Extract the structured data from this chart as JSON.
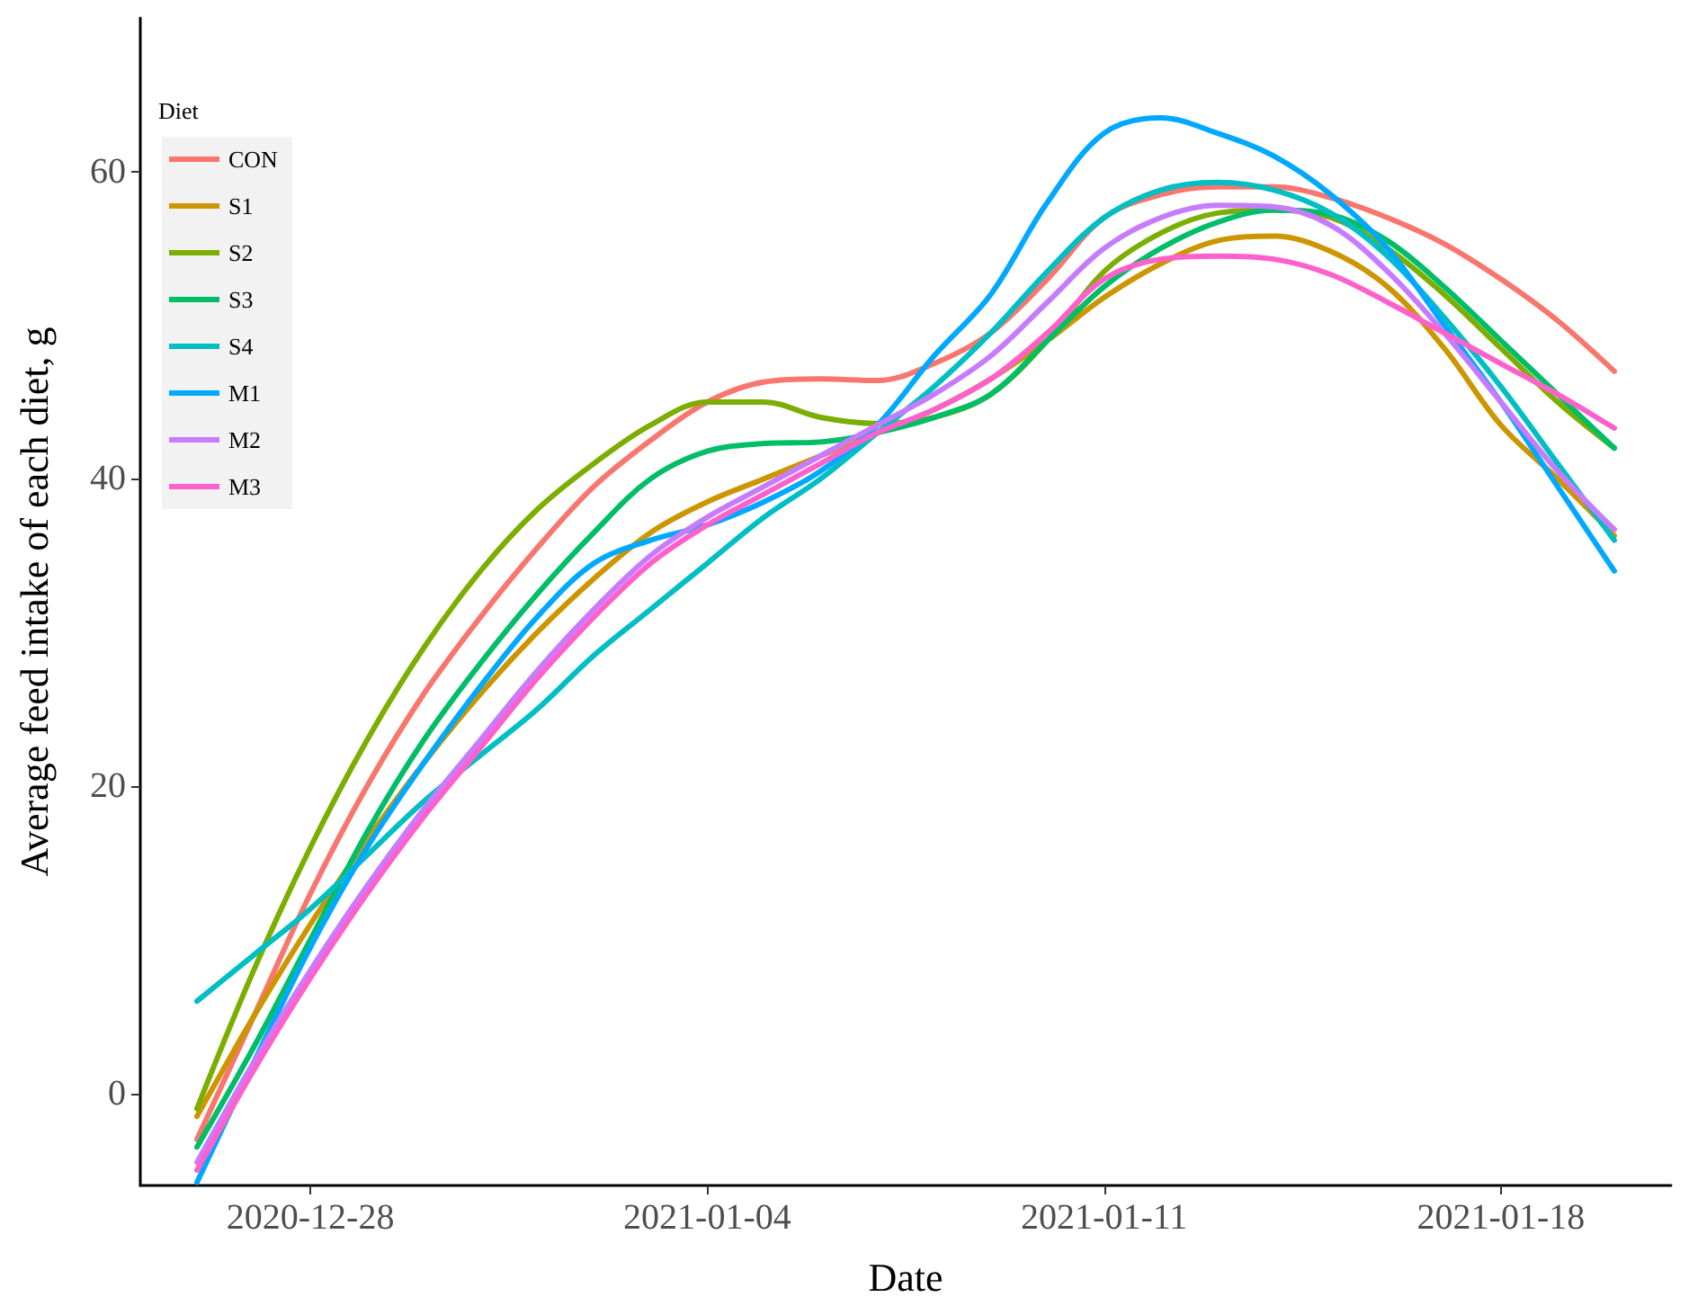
{
  "chart_data": {
    "type": "line",
    "xlabel": "Date",
    "ylabel": "Average feed intake of each diet, g",
    "legend_title": "Diet",
    "legend": "top left",
    "grid": false,
    "x": [
      "2020-12-26",
      "2020-12-27",
      "2020-12-28",
      "2020-12-29",
      "2020-12-30",
      "2020-12-31",
      "2021-01-01",
      "2021-01-02",
      "2021-01-03",
      "2021-01-04",
      "2021-01-05",
      "2021-01-06",
      "2021-01-07",
      "2021-01-08",
      "2021-01-09",
      "2021-01-10",
      "2021-01-11",
      "2021-01-12",
      "2021-01-13",
      "2021-01-14",
      "2021-01-15",
      "2021-01-16",
      "2021-01-17",
      "2021-01-18",
      "2021-01-19",
      "2021-01-20"
    ],
    "xlim": [
      "2020-12-25",
      "2021-01-21"
    ],
    "xticks": [
      "2020-12-28",
      "2021-01-04",
      "2021-01-11",
      "2021-01-18"
    ],
    "ylim": [
      -6,
      70
    ],
    "yticks": [
      0,
      20,
      40,
      60
    ],
    "series": [
      {
        "name": "CON",
        "color": "#f8766d",
        "values": [
          -3,
          5,
          13,
          20,
          26,
          31,
          35.5,
          39.5,
          42.5,
          45,
          46.3,
          46.5,
          46.4,
          47.5,
          49.5,
          53,
          57,
          58.5,
          59,
          59,
          58.3,
          57,
          55.3,
          53,
          50.3,
          47
        ]
      },
      {
        "name": "S1",
        "color": "#cd9600",
        "values": [
          -1.5,
          5,
          11,
          16.5,
          21.5,
          26,
          30,
          33.5,
          36.5,
          38.5,
          40,
          41.5,
          43,
          44.5,
          46.5,
          49,
          51.8,
          54,
          55.5,
          55.8,
          54.8,
          52.5,
          48.5,
          43.5,
          40,
          36.3
        ]
      },
      {
        "name": "S2",
        "color": "#7cae00",
        "values": [
          -1,
          8,
          16,
          23,
          29,
          34,
          38,
          41,
          43.5,
          45,
          45,
          44,
          43.6,
          44,
          45.5,
          49,
          53.5,
          56,
          57.3,
          57.5,
          57,
          55,
          52,
          48.5,
          45,
          42
        ]
      },
      {
        "name": "S3",
        "color": "#00be67",
        "values": [
          -3.5,
          3,
          10,
          17,
          23,
          28,
          32.5,
          36.5,
          40,
          41.8,
          42.3,
          42.4,
          43,
          44,
          45.5,
          49,
          52.5,
          55,
          56.7,
          57.5,
          57.2,
          55.5,
          52.5,
          49,
          45.5,
          42
        ]
      },
      {
        "name": "S4",
        "color": "#00bfc4",
        "values": [
          6,
          9,
          12,
          15.5,
          19,
          22,
          25,
          28.5,
          31.5,
          34.5,
          37.5,
          40,
          43,
          46,
          49.5,
          53.5,
          57,
          58.8,
          59.3,
          58.8,
          57.3,
          54.5,
          50.5,
          46,
          41,
          36
        ]
      },
      {
        "name": "M1",
        "color": "#00a9ff",
        "values": [
          -5.8,
          2,
          9.5,
          16,
          21.5,
          26.5,
          31,
          34.5,
          36,
          37,
          38.5,
          40.5,
          43.5,
          48,
          52,
          58,
          62.5,
          63.5,
          62.5,
          61,
          58.5,
          55,
          50,
          45,
          39.5,
          34
        ]
      },
      {
        "name": "M2",
        "color": "#c77cff",
        "values": [
          -4.5,
          2,
          8,
          13.5,
          18.5,
          23,
          27.5,
          31.5,
          35,
          37.5,
          39.5,
          41.5,
          43.5,
          45.5,
          48,
          51.5,
          55,
          57,
          57.8,
          57.7,
          56.5,
          53.5,
          49.5,
          45,
          40.5,
          36.7
        ]
      },
      {
        "name": "M3",
        "color": "#ff61cc",
        "values": [
          -5,
          1.5,
          7.5,
          13,
          18,
          22.5,
          27,
          31,
          34.5,
          37,
          39,
          41,
          43,
          44.5,
          46.5,
          49.5,
          53,
          54.3,
          54.5,
          54.3,
          53.3,
          51.5,
          49.5,
          47.5,
          45.5,
          43.3
        ]
      }
    ]
  }
}
